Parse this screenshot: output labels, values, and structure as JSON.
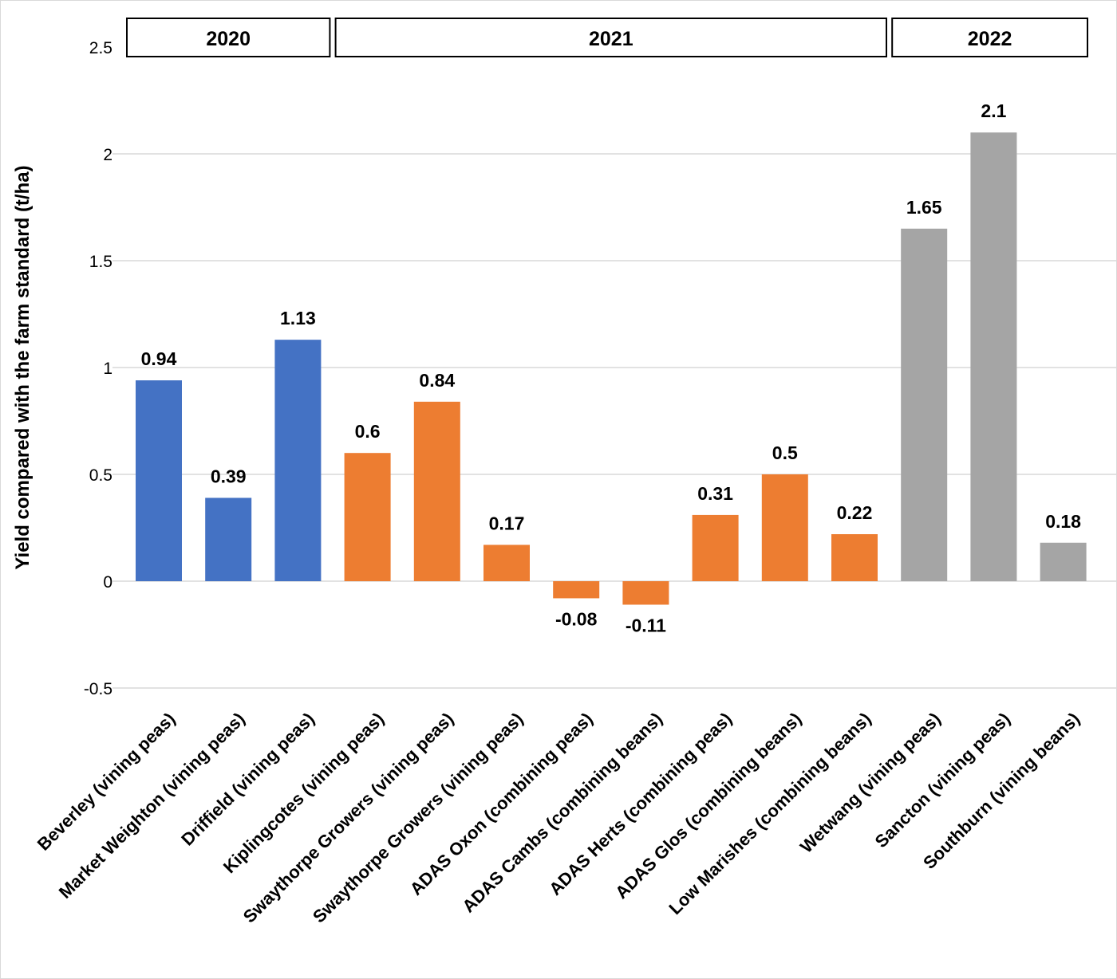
{
  "chart_data": {
    "type": "bar",
    "title": "",
    "xlabel": "",
    "ylabel": "Yield  compared with the farm standard (t/ha)",
    "ylim": [
      -0.5,
      2.5
    ],
    "yticks": [
      2.5,
      2,
      1.5,
      1,
      0.5,
      0,
      -0.5
    ],
    "grid": true,
    "legend": "none",
    "categories": [
      "Beverley (vining peas)",
      "Market Weighton (vining peas)",
      "Driffield (vining peas)",
      "Kiplingcotes (vining peas)",
      "Swaythorpe Growers (vining peas)",
      "Swaythorpe Growers (vining peas)",
      "ADAS Oxon (combining peas)",
      "ADAS Cambs (combining beans)",
      "ADAS Herts (combining peas)",
      "ADAS Glos (combining beans)",
      "Low Marishes (combining beans)",
      "Wetwang (vining peas)",
      "Sancton (vining peas)",
      "Southburn (vining beans)"
    ],
    "values": [
      0.94,
      0.39,
      1.13,
      0.6,
      0.84,
      0.17,
      -0.08,
      -0.11,
      0.31,
      0.5,
      0.22,
      1.65,
      2.1,
      0.18
    ],
    "data_labels": [
      "0.94",
      "0.39",
      "1.13",
      "0.6",
      "0.84",
      "0.17",
      "-0.08",
      "-0.11",
      "0.31",
      "0.5",
      "0.22",
      "1.65",
      "2.1",
      "0.18"
    ],
    "groups": [
      {
        "label": "2020",
        "start": 0,
        "end": 2,
        "color": "#4472c4"
      },
      {
        "label": "2021",
        "start": 3,
        "end": 10,
        "color": "#ed7d31"
      },
      {
        "label": "2022",
        "start": 11,
        "end": 13,
        "color": "#a5a5a5"
      }
    ]
  }
}
